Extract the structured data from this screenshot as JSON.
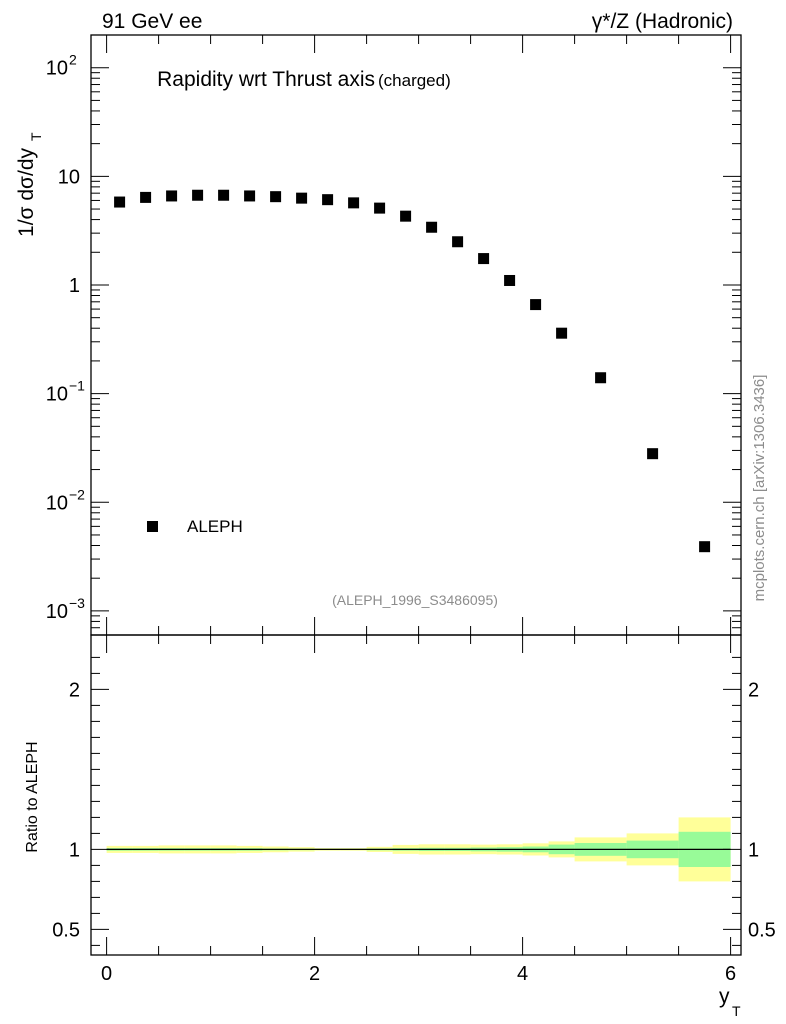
{
  "header": {
    "left": "91 GeV ee",
    "right": "γ*/Z (Hadronic)"
  },
  "side_label": "mcplots.cern.ch [arXiv:1306.3436]",
  "chart_data": [
    {
      "type": "scatter",
      "title": "Rapidity wrt Thrust axis",
      "title_suffix": "(charged)",
      "ylabel": "1/σ dσ/dy",
      "ylabel_sub": "T",
      "yscale": "log",
      "ylim": [
        0.0006,
        200
      ],
      "xlim": [
        -0.15,
        6.1
      ],
      "annotation": "(ALEPH_1996_S3486095)",
      "legend_position": "lower-left",
      "series": [
        {
          "name": "ALEPH",
          "marker": "square",
          "color": "#000000",
          "x": [
            0.125,
            0.375,
            0.625,
            0.875,
            1.125,
            1.375,
            1.625,
            1.875,
            2.125,
            2.375,
            2.625,
            2.875,
            3.125,
            3.375,
            3.625,
            3.875,
            4.125,
            4.375,
            4.75,
            5.25,
            5.75
          ],
          "y": [
            5.8,
            6.4,
            6.6,
            6.7,
            6.7,
            6.6,
            6.5,
            6.3,
            6.1,
            5.7,
            5.1,
            4.3,
            3.4,
            2.5,
            1.75,
            1.1,
            0.66,
            0.36,
            0.14,
            0.028,
            0.0039
          ]
        }
      ],
      "y_ticks": [
        {
          "value": 0.001,
          "base": "10",
          "exp": "−3"
        },
        {
          "value": 0.01,
          "base": "10",
          "exp": "−2"
        },
        {
          "value": 0.1,
          "base": "10",
          "exp": "−1"
        },
        {
          "value": 1,
          "base": "1",
          "exp": ""
        },
        {
          "value": 10,
          "base": "10",
          "exp": ""
        },
        {
          "value": 100,
          "base": "10",
          "exp": "2"
        }
      ]
    },
    {
      "type": "area",
      "ylabel": "Ratio to ALEPH",
      "xlabel": "y",
      "xlabel_sub": "T",
      "ylim": [
        0.34,
        2.34
      ],
      "xlim": [
        -0.15,
        6.1
      ],
      "x_ticks": [
        {
          "value": 0,
          "label": "0"
        },
        {
          "value": 2,
          "label": "2"
        },
        {
          "value": 4,
          "label": "4"
        },
        {
          "value": 6,
          "label": "6"
        }
      ],
      "y_ticks": [
        {
          "value": 0.5,
          "label": "0.5"
        },
        {
          "value": 1,
          "label": "1"
        },
        {
          "value": 2,
          "label": "2"
        }
      ],
      "reference_line": 1,
      "colors": {
        "stat_band": "#98fb98",
        "total_band": "#ffff99"
      },
      "bins": [
        {
          "lo": 0.0,
          "hi": 0.25,
          "stat": 0.008,
          "total": 0.022
        },
        {
          "lo": 0.25,
          "hi": 0.5,
          "stat": 0.008,
          "total": 0.022
        },
        {
          "lo": 0.5,
          "hi": 0.75,
          "stat": 0.008,
          "total": 0.025
        },
        {
          "lo": 0.75,
          "hi": 1.0,
          "stat": 0.008,
          "total": 0.025
        },
        {
          "lo": 1.0,
          "hi": 1.25,
          "stat": 0.008,
          "total": 0.025
        },
        {
          "lo": 1.25,
          "hi": 1.5,
          "stat": 0.008,
          "total": 0.022
        },
        {
          "lo": 1.5,
          "hi": 1.75,
          "stat": 0.006,
          "total": 0.018
        },
        {
          "lo": 1.75,
          "hi": 2.0,
          "stat": 0.005,
          "total": 0.014
        },
        {
          "lo": 2.0,
          "hi": 2.25,
          "stat": 0.004,
          "total": 0.008
        },
        {
          "lo": 2.25,
          "hi": 2.5,
          "stat": 0.004,
          "total": 0.008
        },
        {
          "lo": 2.5,
          "hi": 2.75,
          "stat": 0.006,
          "total": 0.016
        },
        {
          "lo": 2.75,
          "hi": 3.0,
          "stat": 0.008,
          "total": 0.028
        },
        {
          "lo": 3.0,
          "hi": 3.25,
          "stat": 0.01,
          "total": 0.032
        },
        {
          "lo": 3.25,
          "hi": 3.5,
          "stat": 0.01,
          "total": 0.032
        },
        {
          "lo": 3.5,
          "hi": 3.75,
          "stat": 0.012,
          "total": 0.03
        },
        {
          "lo": 3.75,
          "hi": 4.0,
          "stat": 0.014,
          "total": 0.032
        },
        {
          "lo": 4.0,
          "hi": 4.25,
          "stat": 0.018,
          "total": 0.038
        },
        {
          "lo": 4.25,
          "hi": 4.5,
          "stat": 0.03,
          "total": 0.05
        },
        {
          "lo": 4.5,
          "hi": 5.0,
          "stat": 0.04,
          "total": 0.075
        },
        {
          "lo": 5.0,
          "hi": 5.5,
          "stat": 0.055,
          "total": 0.1
        },
        {
          "lo": 5.5,
          "hi": 6.0,
          "stat": 0.11,
          "total": 0.2
        }
      ]
    }
  ]
}
